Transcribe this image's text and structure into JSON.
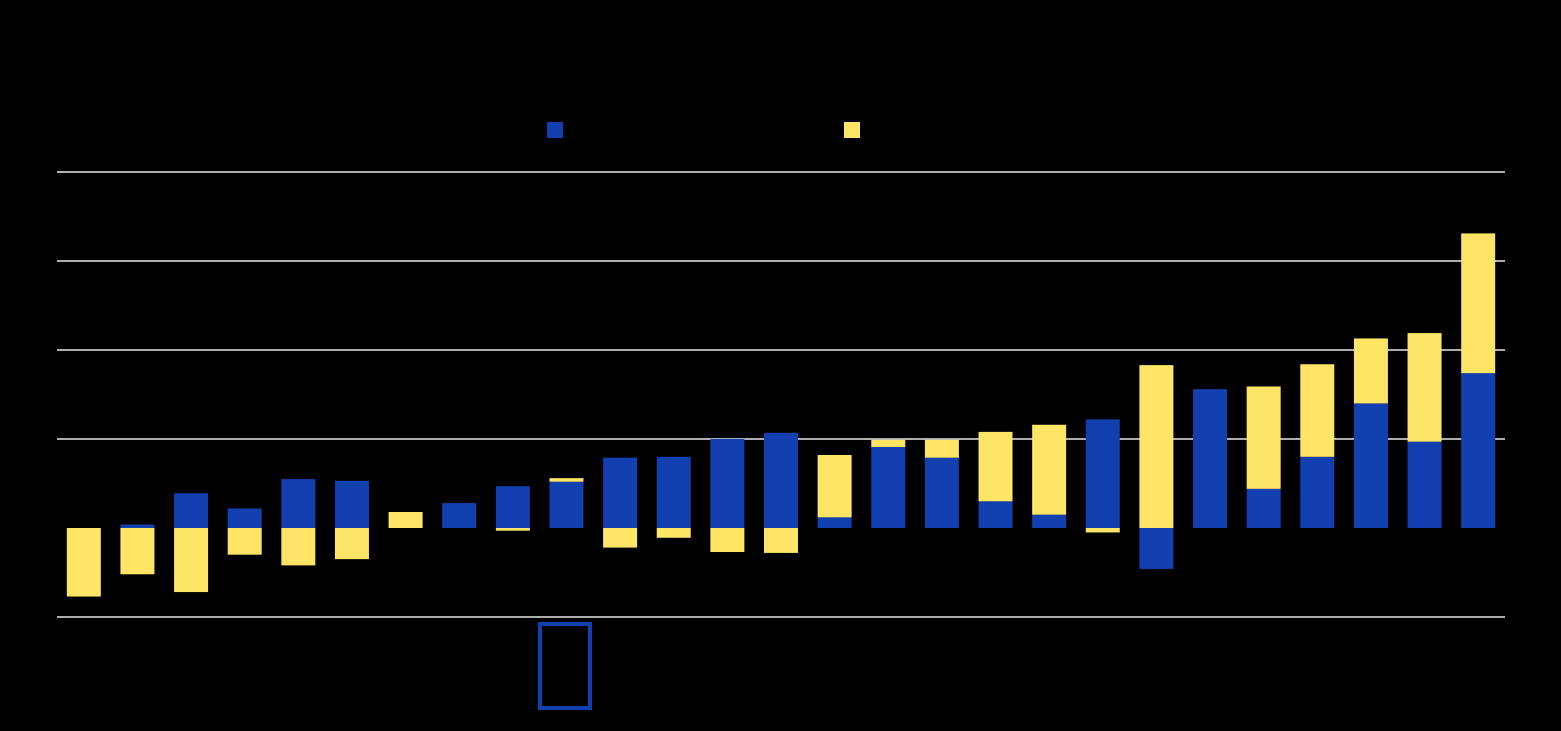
{
  "chart_data": {
    "type": "stacked-bar",
    "categories": [
      null,
      null,
      null,
      null,
      null,
      null,
      null,
      null,
      null,
      null,
      null,
      null,
      null,
      null,
      null,
      null,
      null,
      null,
      null,
      null,
      null,
      null,
      null,
      null,
      null,
      null,
      null
    ],
    "series": [
      {
        "color": "#1240b0",
        "values": [
          0,
          0.04,
          0.39,
          0.22,
          0.55,
          0.53,
          0,
          0.28,
          0.47,
          0.52,
          0.79,
          0.8,
          1.0,
          1.07,
          0.12,
          0.91,
          0.79,
          0.3,
          0.15,
          1.22,
          -0.46,
          1.56,
          0.44,
          0.8,
          1.4,
          0.97,
          1.74
        ]
      },
      {
        "color": "#ffe566",
        "values": [
          -0.77,
          -0.52,
          -0.72,
          -0.3,
          -0.42,
          -0.35,
          0.18,
          0,
          -0.03,
          0.04,
          -0.22,
          -0.11,
          -0.27,
          -0.28,
          0.7,
          0.08,
          0.2,
          0.78,
          1.01,
          -0.05,
          1.83,
          0,
          1.15,
          1.04,
          0.73,
          1.22,
          1.57
        ]
      }
    ],
    "ylim": [
      -1,
      4
    ],
    "yticks": [
      -1,
      1,
      2,
      3,
      4
    ],
    "grid": true
  }
}
